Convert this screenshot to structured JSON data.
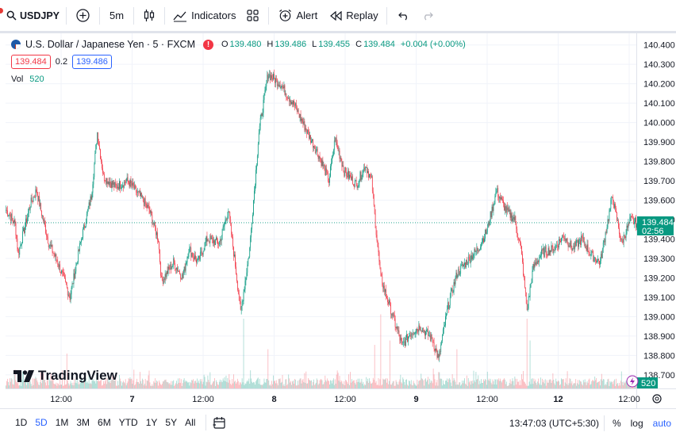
{
  "toolbar": {
    "symbol": "USDJPY",
    "interval": "5m",
    "indicators_label": "Indicators",
    "alert_label": "Alert",
    "replay_label": "Replay"
  },
  "legend": {
    "title": "U.S. Dollar / Japanese Yen · 5 · FXCM",
    "open_key": "O",
    "open": "139.480",
    "high_key": "H",
    "high": "139.486",
    "low_key": "L",
    "low": "139.455",
    "close_key": "C",
    "close": "139.484",
    "change": "+0.004 (+0.00%)",
    "sell_price": "139.484",
    "spread": "0.2",
    "buy_price": "139.486",
    "vol_label": "Vol",
    "vol_value": "520",
    "alert_badge": "!"
  },
  "watermark": "TradingView",
  "colors": {
    "up": "#089981",
    "down": "#f23645",
    "current_price_bg": "#089981",
    "active": "#2962ff"
  },
  "bottombar": {
    "ranges": [
      "1D",
      "5D",
      "1M",
      "3M",
      "6M",
      "YTD",
      "1Y",
      "5Y",
      "All"
    ],
    "active_range": "5D",
    "clock": "13:47:03 (UTC+5:30)",
    "percent_label": "%",
    "log_label": "log",
    "auto_label": "auto"
  },
  "chart_data": {
    "type": "candlestick",
    "symbol": "USDJPY",
    "interval": "5m",
    "ylim": [
      138.63,
      140.46
    ],
    "y_ticks": [
      140.4,
      140.3,
      140.2,
      140.1,
      140.0,
      139.9,
      139.8,
      139.7,
      139.6,
      139.5,
      139.4,
      139.3,
      139.2,
      139.1,
      139.0,
      138.9,
      138.8,
      138.7
    ],
    "y_tick_labels": [
      "140.400",
      "140.300",
      "140.200",
      "140.100",
      "140.000",
      "139.900",
      "139.800",
      "139.700",
      "139.600",
      "139.500",
      "139.400",
      "139.300",
      "139.200",
      "139.100",
      "139.000",
      "138.900",
      "138.800",
      "138.700"
    ],
    "x_labels": [
      "12:00",
      "7",
      "12:00",
      "8",
      "12:00",
      "9",
      "12:00",
      "12",
      "12:00"
    ],
    "current_price": "139.484",
    "countdown": "02:56",
    "volume_current": "520",
    "path": [
      [
        0,
        139.55
      ],
      [
        3,
        139.48
      ],
      [
        4,
        139.32
      ],
      [
        8,
        139.58
      ],
      [
        10,
        139.65
      ],
      [
        14,
        139.38
      ],
      [
        17,
        139.28
      ],
      [
        21,
        139.1
      ],
      [
        25,
        139.42
      ],
      [
        28,
        139.62
      ],
      [
        30,
        139.95
      ],
      [
        32,
        139.72
      ],
      [
        36,
        139.67
      ],
      [
        40,
        139.7
      ],
      [
        44,
        139.62
      ],
      [
        47,
        139.55
      ],
      [
        50,
        139.4
      ],
      [
        51,
        139.18
      ],
      [
        55,
        139.28
      ],
      [
        58,
        139.2
      ],
      [
        60,
        139.35
      ],
      [
        63,
        139.28
      ],
      [
        66,
        139.4
      ],
      [
        70,
        139.38
      ],
      [
        73,
        139.55
      ],
      [
        75,
        139.3
      ],
      [
        77,
        139.02
      ],
      [
        80,
        139.35
      ],
      [
        83,
        139.95
      ],
      [
        86,
        140.25
      ],
      [
        90,
        140.2
      ],
      [
        95,
        140.08
      ],
      [
        98,
        139.98
      ],
      [
        103,
        139.82
      ],
      [
        106,
        139.7
      ],
      [
        108,
        139.92
      ],
      [
        111,
        139.75
      ],
      [
        115,
        139.68
      ],
      [
        118,
        139.78
      ],
      [
        120,
        139.7
      ],
      [
        121,
        139.52
      ],
      [
        123,
        139.2
      ],
      [
        126,
        139.05
      ],
      [
        130,
        138.85
      ],
      [
        133,
        138.92
      ],
      [
        136,
        138.95
      ],
      [
        140,
        138.88
      ],
      [
        142,
        138.78
      ],
      [
        145,
        139.05
      ],
      [
        148,
        139.22
      ],
      [
        151,
        139.28
      ],
      [
        155,
        139.35
      ],
      [
        158,
        139.45
      ],
      [
        161,
        139.65
      ],
      [
        164,
        139.55
      ],
      [
        167,
        139.5
      ],
      [
        169,
        139.35
      ],
      [
        171,
        139.03
      ],
      [
        173,
        139.25
      ],
      [
        176,
        139.33
      ],
      [
        180,
        139.35
      ],
      [
        183,
        139.42
      ],
      [
        186,
        139.35
      ],
      [
        189,
        139.4
      ],
      [
        192,
        139.32
      ],
      [
        195,
        139.28
      ],
      [
        197,
        139.45
      ],
      [
        199,
        139.62
      ],
      [
        202,
        139.38
      ],
      [
        205,
        139.5
      ],
      [
        207,
        139.48
      ]
    ],
    "volume_spikes": [
      [
        78,
        0.8
      ],
      [
        123,
        0.85
      ],
      [
        126,
        0.55
      ],
      [
        171,
        0.8
      ],
      [
        172,
        0.55
      ],
      [
        86,
        0.45
      ],
      [
        148,
        0.45
      ],
      [
        20,
        0.4
      ],
      [
        121,
        0.5
      ]
    ]
  }
}
